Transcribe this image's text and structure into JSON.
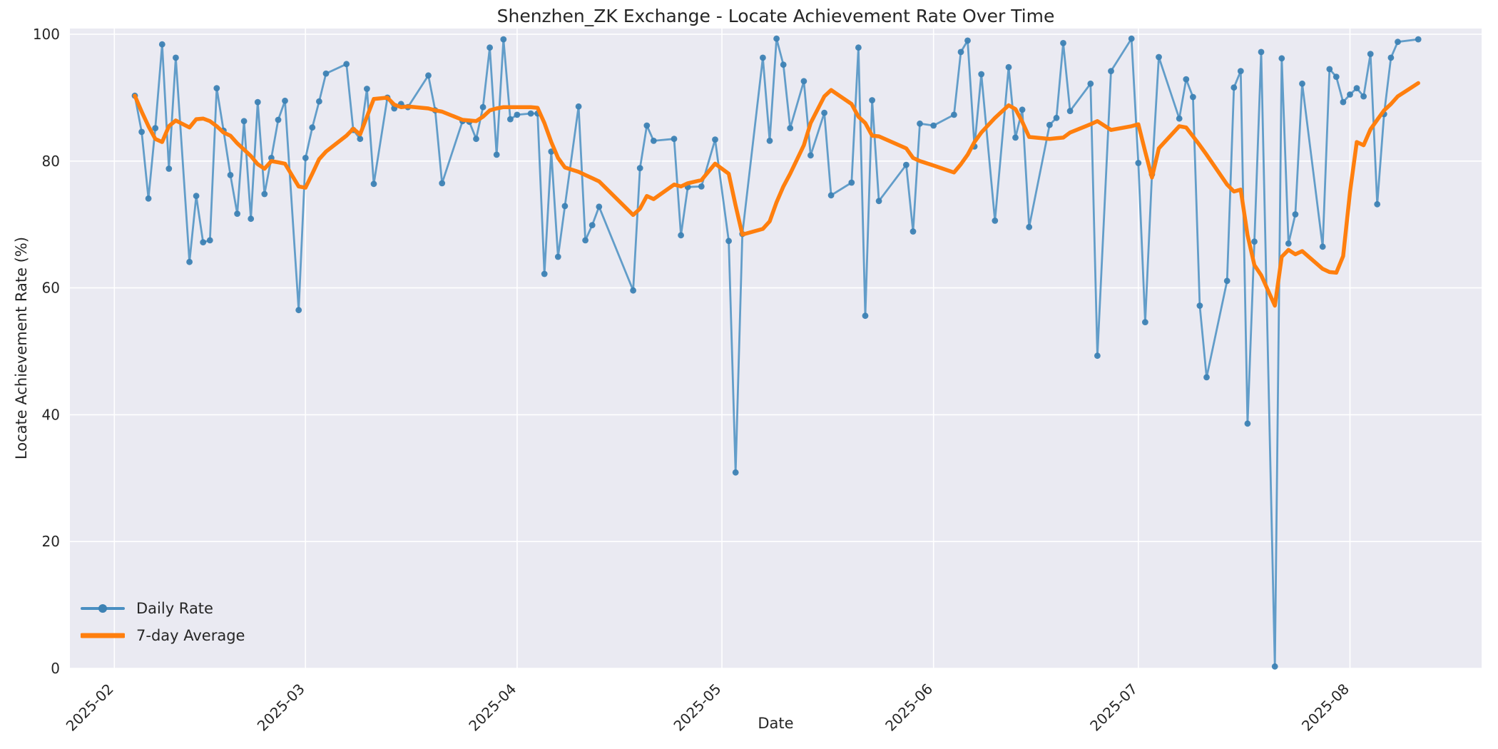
{
  "window": {
    "title": "Shenzhen_ZK Exchange - Locate Achievement Rate Over Time"
  },
  "chart_data": {
    "type": "line",
    "title": "Shenzhen_ZK Exchange - Locate Achievement Rate Over Time",
    "xlabel": "Date",
    "ylabel": "Locate Achievement Rate (%)",
    "ylim": [
      0,
      100
    ],
    "yticks": [
      0,
      20,
      40,
      60,
      80,
      100
    ],
    "xticks": [
      {
        "label": "2025-02",
        "date": "2025-02-01"
      },
      {
        "label": "2025-03",
        "date": "2025-03-01"
      },
      {
        "label": "2025-04",
        "date": "2025-04-01"
      },
      {
        "label": "2025-05",
        "date": "2025-05-01"
      },
      {
        "label": "2025-06",
        "date": "2025-06-01"
      },
      {
        "label": "2025-07",
        "date": "2025-07-01"
      },
      {
        "label": "2025-08",
        "date": "2025-08-01"
      }
    ],
    "grid": true,
    "plot_background": "#eaeaf2",
    "grid_color": "#ffffff",
    "legend_position": "lower left",
    "dates": [
      "2025-02-04",
      "2025-02-05",
      "2025-02-06",
      "2025-02-07",
      "2025-02-08",
      "2025-02-09",
      "2025-02-10",
      "2025-02-12",
      "2025-02-13",
      "2025-02-14",
      "2025-02-15",
      "2025-02-16",
      "2025-02-17",
      "2025-02-18",
      "2025-02-19",
      "2025-02-20",
      "2025-02-21",
      "2025-02-22",
      "2025-02-23",
      "2025-02-24",
      "2025-02-25",
      "2025-02-26",
      "2025-02-28",
      "2025-03-01",
      "2025-03-02",
      "2025-03-03",
      "2025-03-04",
      "2025-03-07",
      "2025-03-08",
      "2025-03-09",
      "2025-03-10",
      "2025-03-11",
      "2025-03-13",
      "2025-03-14",
      "2025-03-15",
      "2025-03-16",
      "2025-03-19",
      "2025-03-20",
      "2025-03-21",
      "2025-03-24",
      "2025-03-25",
      "2025-03-26",
      "2025-03-27",
      "2025-03-28",
      "2025-03-29",
      "2025-03-30",
      "2025-03-31",
      "2025-04-01",
      "2025-04-03",
      "2025-04-04",
      "2025-04-05",
      "2025-04-06",
      "2025-04-07",
      "2025-04-08",
      "2025-04-10",
      "2025-04-11",
      "2025-04-12",
      "2025-04-13",
      "2025-04-18",
      "2025-04-19",
      "2025-04-20",
      "2025-04-21",
      "2025-04-24",
      "2025-04-25",
      "2025-04-26",
      "2025-04-28",
      "2025-04-30",
      "2025-05-02",
      "2025-05-03",
      "2025-05-04",
      "2025-05-07",
      "2025-05-08",
      "2025-05-09",
      "2025-05-10",
      "2025-05-11",
      "2025-05-13",
      "2025-05-14",
      "2025-05-16",
      "2025-05-17",
      "2025-05-20",
      "2025-05-21",
      "2025-05-22",
      "2025-05-23",
      "2025-05-24",
      "2025-05-28",
      "2025-05-29",
      "2025-05-30",
      "2025-06-01",
      "2025-06-04",
      "2025-06-05",
      "2025-06-06",
      "2025-06-07",
      "2025-06-08",
      "2025-06-10",
      "2025-06-12",
      "2025-06-13",
      "2025-06-14",
      "2025-06-15",
      "2025-06-18",
      "2025-06-19",
      "2025-06-20",
      "2025-06-21",
      "2025-06-24",
      "2025-06-25",
      "2025-06-27",
      "2025-06-30",
      "2025-07-01",
      "2025-07-02",
      "2025-07-03",
      "2025-07-04",
      "2025-07-07",
      "2025-07-08",
      "2025-07-09",
      "2025-07-10",
      "2025-07-11",
      "2025-07-14",
      "2025-07-15",
      "2025-07-16",
      "2025-07-17",
      "2025-07-18",
      "2025-07-19",
      "2025-07-21",
      "2025-07-22",
      "2025-07-23",
      "2025-07-24",
      "2025-07-25",
      "2025-07-28",
      "2025-07-29",
      "2025-07-30",
      "2025-07-31",
      "2025-08-01",
      "2025-08-02",
      "2025-08-03",
      "2025-08-04",
      "2025-08-05",
      "2025-08-06",
      "2025-08-07",
      "2025-08-08",
      "2025-08-11"
    ],
    "series": [
      {
        "name": "Daily Rate",
        "color": "#4a8fc2",
        "marker_color": "#3d82b4",
        "style": "line+markers",
        "values": [
          90.3,
          84.6,
          74.1,
          85.2,
          98.4,
          78.8,
          96.3,
          64.1,
          74.5,
          67.2,
          67.5,
          91.5,
          84.8,
          77.8,
          71.7,
          86.3,
          70.9,
          89.3,
          74.8,
          80.5,
          86.5,
          89.5,
          56.5,
          80.5,
          85.3,
          89.4,
          93.8,
          95.3,
          84.9,
          83.5,
          91.4,
          76.4,
          90.0,
          88.3,
          89.0,
          88.5,
          93.5,
          88.0,
          76.5,
          86.3,
          86.2,
          83.5,
          88.5,
          97.9,
          81.0,
          99.2,
          86.6,
          87.3,
          87.5,
          87.5,
          62.2,
          81.5,
          64.9,
          72.9,
          88.6,
          67.5,
          69.9,
          72.8,
          59.6,
          78.9,
          85.6,
          83.2,
          83.5,
          68.3,
          75.9,
          76.0,
          83.4,
          67.4,
          30.9,
          68.5,
          96.3,
          83.2,
          99.3,
          95.2,
          85.2,
          92.6,
          80.9,
          87.6,
          74.6,
          76.6,
          97.9,
          55.6,
          89.6,
          73.7,
          79.4,
          68.9,
          85.9,
          85.6,
          87.3,
          97.2,
          99.0,
          82.3,
          93.7,
          70.6,
          94.8,
          83.7,
          88.1,
          69.6,
          85.7,
          86.8,
          98.6,
          87.9,
          92.2,
          49.3,
          94.2,
          99.3,
          79.7,
          54.6,
          77.9,
          96.4,
          86.7,
          92.9,
          90.1,
          57.2,
          45.9,
          61.1,
          91.6,
          94.2,
          38.6,
          67.3,
          97.2,
          0.3,
          96.2,
          67.0,
          71.6,
          92.2,
          66.5,
          94.5,
          93.3,
          89.3,
          90.5,
          91.5,
          90.2,
          96.9,
          73.2,
          87.4,
          96.3,
          98.8,
          99.2
        ]
      },
      {
        "name": "7-day Average",
        "color": "#ff7f0e",
        "style": "line",
        "values": [
          90.3,
          87.8,
          85.5,
          83.5,
          83.0,
          85.5,
          86.4,
          85.3,
          86.6,
          86.7,
          86.3,
          85.5,
          84.5,
          84.0,
          82.8,
          81.8,
          80.8,
          79.5,
          78.8,
          80.0,
          79.8,
          79.6,
          76.0,
          75.8,
          78.0,
          80.3,
          81.5,
          84.0,
          85.1,
          84.2,
          87.0,
          89.8,
          90.0,
          88.9,
          88.5,
          88.6,
          88.3,
          88.0,
          87.8,
          86.5,
          86.4,
          86.3,
          87.0,
          88.0,
          88.3,
          88.5,
          88.5,
          88.5,
          88.5,
          88.4,
          86.0,
          83.0,
          80.5,
          79.0,
          78.3,
          77.8,
          77.3,
          76.8,
          71.5,
          72.5,
          74.5,
          74.0,
          76.3,
          76.0,
          76.5,
          77.0,
          79.6,
          78.0,
          73.0,
          68.4,
          69.3,
          70.5,
          73.5,
          76.0,
          78.0,
          82.5,
          86.0,
          90.2,
          91.2,
          89.0,
          87.0,
          86.0,
          84.0,
          83.9,
          82.0,
          80.5,
          80.0,
          79.3,
          78.2,
          79.5,
          81.0,
          83.0,
          84.5,
          86.8,
          88.8,
          88.2,
          86.2,
          83.8,
          83.5,
          83.6,
          83.7,
          84.5,
          85.8,
          86.3,
          84.9,
          85.5,
          85.8,
          81.5,
          77.4,
          82.0,
          85.5,
          85.3,
          83.9,
          82.5,
          81.0,
          76.3,
          75.2,
          75.5,
          68.3,
          63.6,
          62.0,
          57.2,
          64.9,
          66.0,
          65.3,
          65.8,
          63.0,
          62.5,
          62.4,
          65.0,
          75.1,
          83.0,
          82.5,
          85.0,
          86.5,
          88.0,
          89.0,
          90.2,
          92.3
        ]
      }
    ],
    "legend": {
      "daily_label": "Daily Rate",
      "average_label": "7-day Average"
    }
  }
}
